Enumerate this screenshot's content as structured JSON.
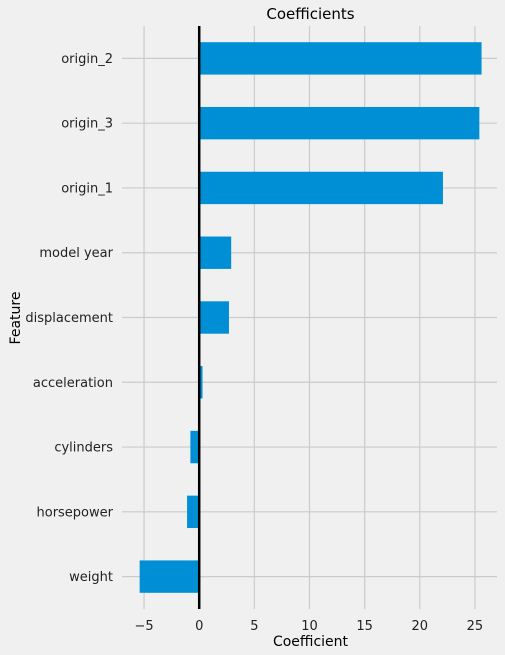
{
  "chart_data": {
    "type": "bar",
    "orientation": "horizontal",
    "title": "Coefficients",
    "xlabel": "Coefficient",
    "ylabel": "Feature",
    "categories": [
      "origin_2",
      "origin_3",
      "origin_1",
      "model year",
      "displacement",
      "acceleration",
      "cylinders",
      "horsepower",
      "weight"
    ],
    "values": [
      25.6,
      25.4,
      22.1,
      2.9,
      2.7,
      0.3,
      -0.8,
      -1.1,
      -5.4
    ],
    "xlim": [
      -7,
      27
    ],
    "xticks": [
      -5,
      0,
      5,
      10,
      15,
      20,
      25
    ],
    "grid": true,
    "zero_line": true,
    "bar_color": "#008fd5",
    "background": "#f0f0f0"
  }
}
